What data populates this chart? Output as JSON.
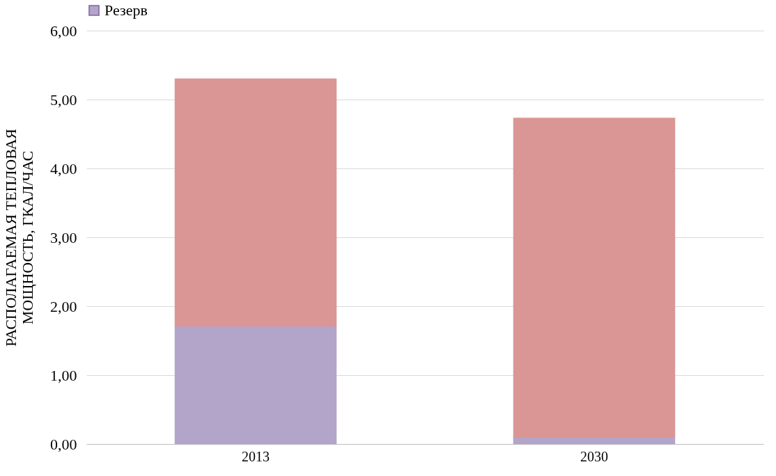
{
  "chart_data": {
    "type": "bar",
    "stacked": true,
    "categories": [
      "2013",
      "2030"
    ],
    "ylabel": "РАСПОЛАГАЕМАЯ  ТЕПЛОВАЯ\nМОЩНОСТЬ, ГКАЛ/ЧАС",
    "series": [
      {
        "name": "Резерв",
        "color": "#b3a5c9",
        "values": [
          1.71,
          0.1
        ]
      },
      {
        "color": "#d99694",
        "values": [
          3.59,
          4.63
        ]
      }
    ],
    "ylim": [
      0,
      6
    ],
    "yticks": [
      {
        "value": 0,
        "label": "0,00"
      },
      {
        "value": 1,
        "label": "1,00"
      },
      {
        "value": 2,
        "label": "2,00"
      },
      {
        "value": 3,
        "label": "3,00"
      },
      {
        "value": 4,
        "label": "4,00"
      },
      {
        "value": 5,
        "label": "5,00"
      },
      {
        "value": 6,
        "label": "6,00"
      }
    ],
    "grid": "y",
    "legend": "top"
  }
}
